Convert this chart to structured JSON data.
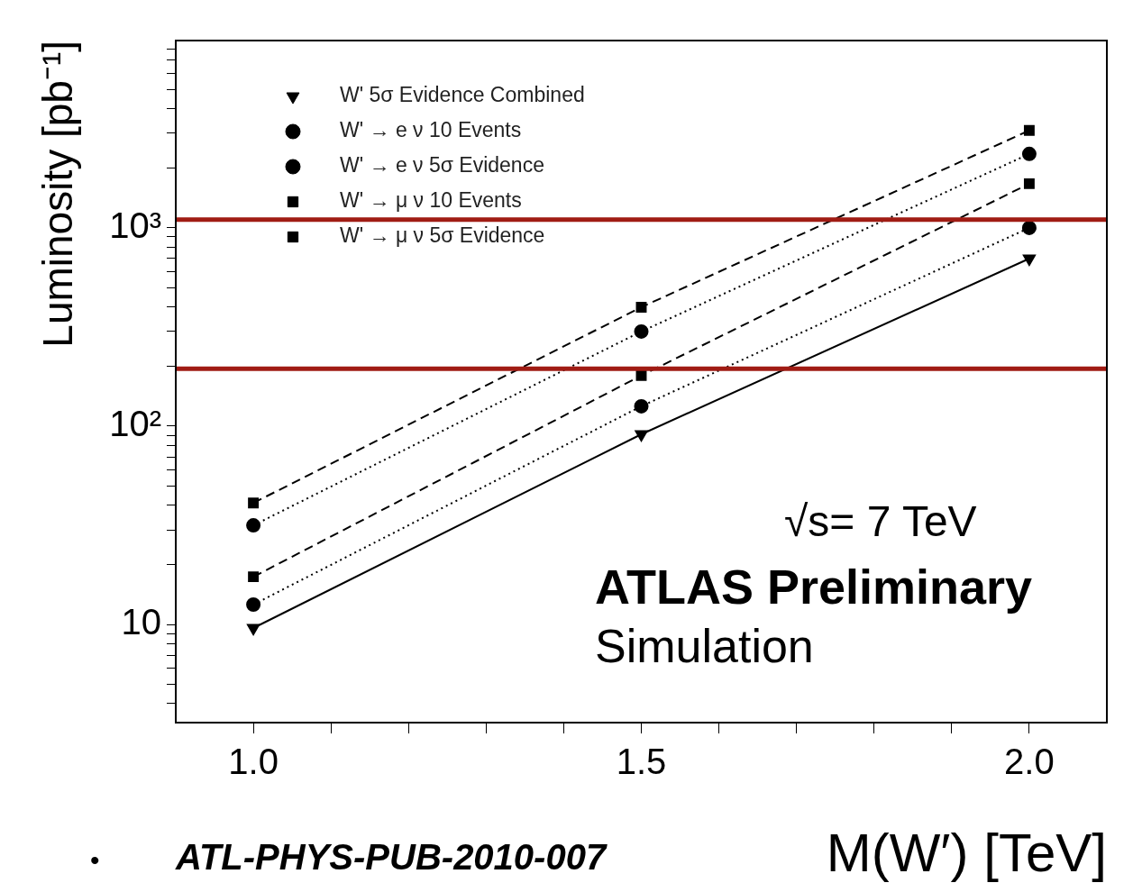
{
  "chart_data": {
    "type": "line",
    "xlabel": "M(W′) [TeV]",
    "ylabel": "Luminosity [pb⁻¹]",
    "log": "y",
    "x": [
      1.0,
      1.5,
      2.0
    ],
    "xlim": [
      0.9,
      2.1
    ],
    "xticks": [
      {
        "value": 1.0,
        "label": "1.0"
      },
      {
        "value": 1.1,
        "label": null
      },
      {
        "value": 1.2,
        "label": null
      },
      {
        "value": 1.3,
        "label": null
      },
      {
        "value": 1.4,
        "label": null
      },
      {
        "value": 1.5,
        "label": "1.5"
      },
      {
        "value": 1.6,
        "label": null
      },
      {
        "value": 1.7,
        "label": null
      },
      {
        "value": 1.8,
        "label": null
      },
      {
        "value": 1.9,
        "label": null
      },
      {
        "value": 2.0,
        "label": "2.0"
      }
    ],
    "ylim": [
      3.2,
      8800
    ],
    "yticks": [
      {
        "value": 4,
        "label": null
      },
      {
        "value": 5,
        "label": null
      },
      {
        "value": 6,
        "label": null
      },
      {
        "value": 7,
        "label": null
      },
      {
        "value": 8,
        "label": null
      },
      {
        "value": 9,
        "label": null
      },
      10,
      {
        "value": 20,
        "label": null
      },
      {
        "value": 30,
        "label": null
      },
      {
        "value": 40,
        "label": null
      },
      {
        "value": 50,
        "label": null
      },
      {
        "value": 60,
        "label": null
      },
      {
        "value": 70,
        "label": null
      },
      {
        "value": 80,
        "label": null
      },
      {
        "value": 90,
        "label": null
      },
      {
        "value": 100,
        "label": "10²"
      },
      {
        "value": 200,
        "label": null
      },
      {
        "value": 300,
        "label": null
      },
      {
        "value": 400,
        "label": null
      },
      {
        "value": 500,
        "label": null
      },
      {
        "value": 600,
        "label": null
      },
      {
        "value": 700,
        "label": null
      },
      {
        "value": 800,
        "label": null
      },
      {
        "value": 900,
        "label": null
      },
      {
        "value": 1000,
        "label": "10³"
      },
      {
        "value": 2000,
        "label": null
      },
      {
        "value": 3000,
        "label": null
      },
      {
        "value": 4000,
        "label": null
      },
      {
        "value": 5000,
        "label": null
      },
      {
        "value": 6000,
        "label": null
      },
      {
        "value": 7000,
        "label": null
      },
      {
        "value": 8000,
        "label": null
      }
    ],
    "grid": false,
    "legend": "top left",
    "series": [
      {
        "name": "W' 5σ Evidence Combined",
        "color": "#000000",
        "marker": "triangle",
        "line_style": "solid",
        "values": [
          9.6,
          91,
          700
        ]
      },
      {
        "name": "W' → e ν 10 Events",
        "color": "#000000",
        "marker": "circle",
        "line_style": "dotted",
        "values": [
          31.6,
          300,
          2360
        ]
      },
      {
        "name": "W' → e ν 5σ Evidence",
        "color": "#000000",
        "marker": "circle",
        "line_style": "dotted",
        "values": [
          12.6,
          126,
          1000
        ]
      },
      {
        "name": "W' → μ ν 10 Events",
        "color": "#000000",
        "marker": "square",
        "line_style": "dashed",
        "values": [
          41,
          398,
          3100
        ]
      },
      {
        "name": "W' → μ ν 5σ Evidence",
        "color": "#000000",
        "marker": "square",
        "line_style": "dashed",
        "values": [
          17.4,
          180,
          1670
        ]
      }
    ],
    "ref_lines": [
      {
        "axis": "y",
        "value": 1100,
        "color": "#a01c14"
      },
      {
        "axis": "y",
        "value": 195,
        "color": "#a01c14"
      }
    ],
    "annotations": [
      "√s= 7 TeV",
      "ATLAS Preliminary",
      "Simulation",
      "•",
      "ATL-PHYS-PUB-2010-007"
    ]
  }
}
